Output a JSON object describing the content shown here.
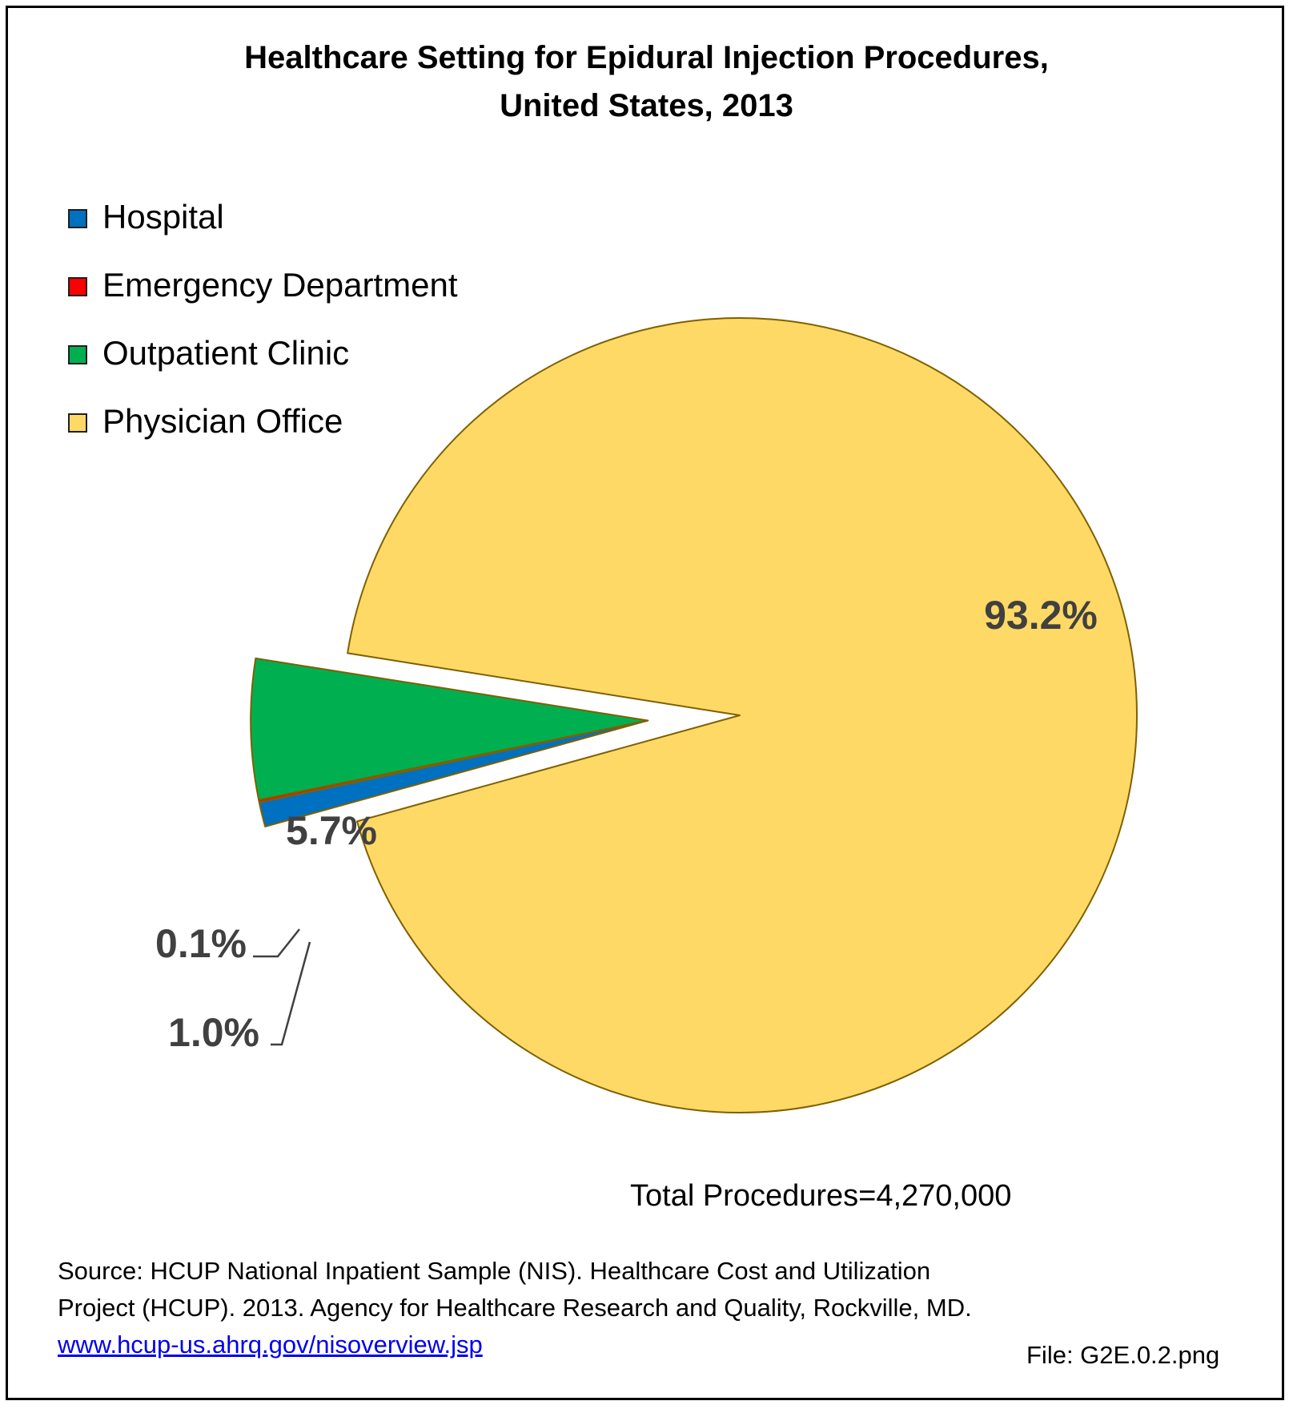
{
  "title": [
    "Healthcare Setting for Epidural Injection Procedures,",
    "United States, 2013"
  ],
  "legend": [
    {
      "label": "Hospital",
      "color": "#0070c0"
    },
    {
      "label": "Emergency Department",
      "color": "#ff0000"
    },
    {
      "label": "Outpatient Clinic",
      "color": "#00b050"
    },
    {
      "label": "Physician Office",
      "color": "#ffd966"
    }
  ],
  "chart_data": {
    "type": "pie",
    "categories": [
      "Physician Office",
      "Hospital",
      "Emergency Department",
      "Outpatient Clinic"
    ],
    "values": [
      93.2,
      1.0,
      0.1,
      5.7
    ],
    "value_labels": [
      "93.2%",
      "1.0%",
      "0.1%",
      "5.7%"
    ],
    "colors": [
      "#ffd966",
      "#0070c0",
      "#ff0000",
      "#00b050"
    ],
    "exploded": [
      "Hospital",
      "Emergency Department",
      "Outpatient Clinic"
    ],
    "legend_position": "top-left",
    "title": "Healthcare Setting for Epidural Injection Procedures, United States, 2013"
  },
  "total_note": "Total Procedures=4,270,000",
  "source": {
    "text": "Source: HCUP National Inpatient Sample (NIS). Healthcare Cost and Utilization Project (HCUP). 2013. Agency for Healthcare Research and Quality, Rockville, MD. ",
    "link": "www.hcup-us.ahrq.gov/nisoverview.jsp"
  },
  "file_note": "File: G2E.0.2.png"
}
